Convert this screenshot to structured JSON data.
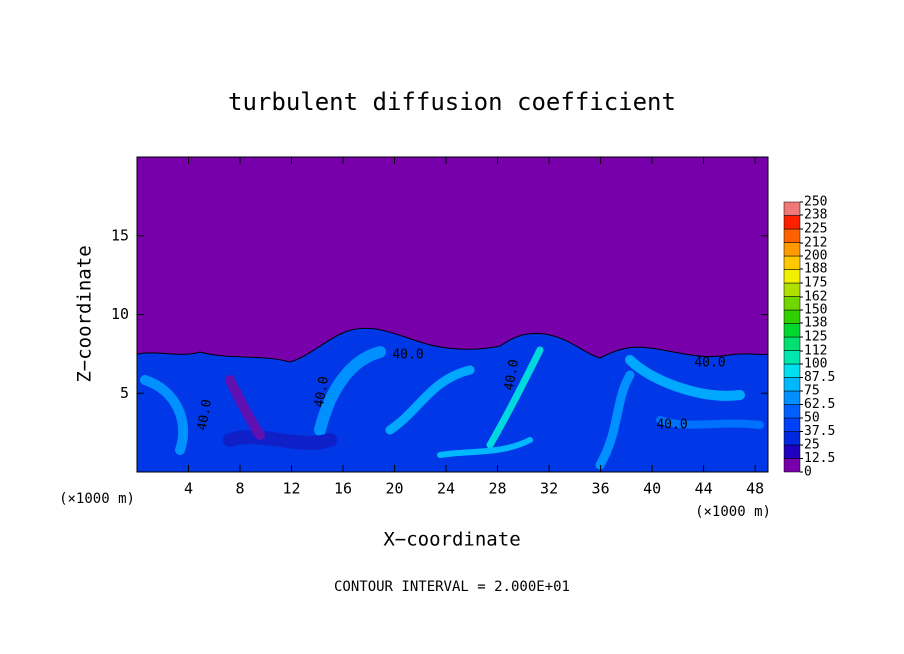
{
  "chart_data": {
    "type": "contour",
    "title": "turbulent diffusion coefficient",
    "x_label": "X−coordinate",
    "y_label": "Z−coordinate",
    "x_unit": "(×1000 m)",
    "footer": "CONTOUR INTERVAL = 2.000E+01",
    "xlim": [
      0,
      49
    ],
    "ylim": [
      0,
      20
    ],
    "xticks": [
      4,
      8,
      12,
      16,
      20,
      24,
      28,
      32,
      36,
      40,
      44,
      48
    ],
    "yticks": [
      5,
      10,
      15
    ],
    "annotations": [
      "40.0",
      "40.0",
      "40.0",
      "40.0",
      "40.0",
      "40.0"
    ],
    "colorbar": {
      "ticks": [
        0,
        12.5,
        25,
        37.5,
        50,
        62.5,
        75,
        87.5,
        100,
        112,
        125,
        138,
        150,
        162,
        175,
        188,
        200,
        212,
        225,
        238,
        250
      ],
      "colors": [
        "#7800aa",
        "#2000c0",
        "#0028e0",
        "#0040f8",
        "#0060ff",
        "#0090ff",
        "#00b8ff",
        "#00e0f0",
        "#00e8b0",
        "#00e070",
        "#00d830",
        "#30d000",
        "#70d800",
        "#b0e000",
        "#f0f000",
        "#ffc800",
        "#ff9a00",
        "#ff6000",
        "#ff2000",
        "#f07878"
      ]
    }
  }
}
